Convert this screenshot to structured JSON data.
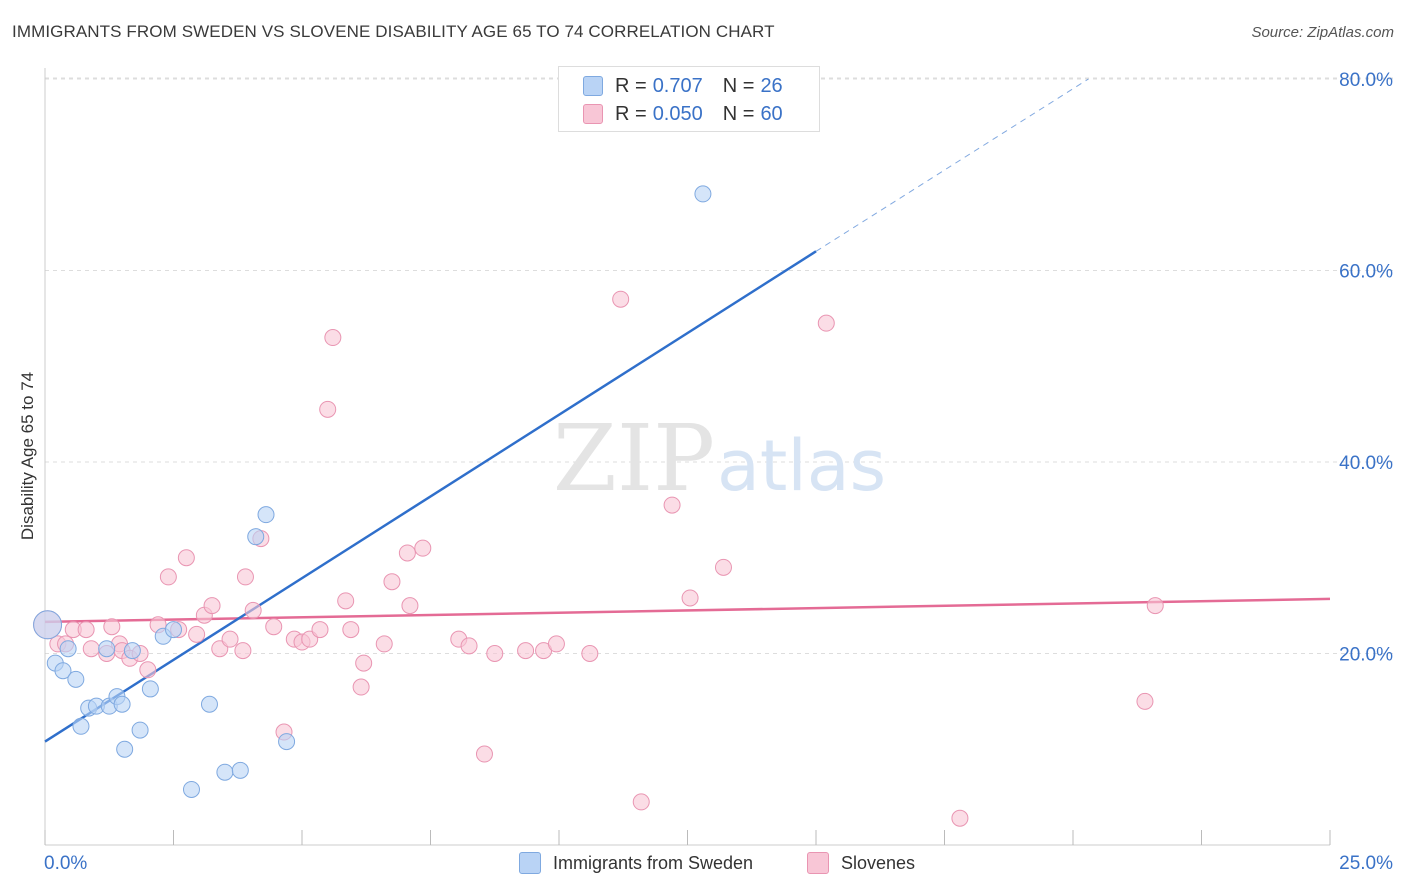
{
  "title": "IMMIGRANTS FROM SWEDEN VS SLOVENE DISABILITY AGE 65 TO 74 CORRELATION CHART",
  "source": "Source: ZipAtlas.com",
  "watermark": {
    "zip": "ZIP",
    "atlas": "atlas"
  },
  "legend": {
    "r_label": "R =",
    "n_label": "N =",
    "items": [
      {
        "r": "0.707",
        "n": "26"
      },
      {
        "r": "0.050",
        "n": "60"
      }
    ]
  },
  "colors": {
    "sweden_fill": "#b9d3f5",
    "sweden_stroke": "#7fa9e0",
    "sweden_line": "#2f6fcb",
    "slovene_fill": "#f8c6d6",
    "slovene_stroke": "#e995b2",
    "slovene_line": "#e46b95",
    "tick_label": "#3a72c7",
    "grid": "#dddddd"
  },
  "chart_data": {
    "type": "scatter",
    "xlabel": "",
    "ylabel": "Disability Age 65 to 74",
    "xlim": [
      0,
      25
    ],
    "ylim": [
      0,
      80
    ],
    "x_tick_labels": [
      "0.0%",
      "25.0%"
    ],
    "y_ticks": [
      20,
      40,
      60,
      80
    ],
    "y_tick_labels": [
      "20.0%",
      "40.0%",
      "60.0%",
      "80.0%"
    ],
    "grid": true,
    "legend_position": "top-center",
    "series": [
      {
        "name": "Immigrants from Sweden",
        "points": [
          [
            0.05,
            23.0
          ],
          [
            0.2,
            19.0
          ],
          [
            0.35,
            18.2
          ],
          [
            0.45,
            20.5
          ],
          [
            0.6,
            17.3
          ],
          [
            0.7,
            12.4
          ],
          [
            0.85,
            14.3
          ],
          [
            1.0,
            14.5
          ],
          [
            1.2,
            20.5
          ],
          [
            1.25,
            14.5
          ],
          [
            1.4,
            15.5
          ],
          [
            1.5,
            14.7
          ],
          [
            1.55,
            10.0
          ],
          [
            1.7,
            20.3
          ],
          [
            1.85,
            12.0
          ],
          [
            2.05,
            16.3
          ],
          [
            2.3,
            21.8
          ],
          [
            2.5,
            22.5
          ],
          [
            2.85,
            5.8
          ],
          [
            3.2,
            14.7
          ],
          [
            3.5,
            7.6
          ],
          [
            3.8,
            7.8
          ],
          [
            4.1,
            32.2
          ],
          [
            4.3,
            34.5
          ],
          [
            4.7,
            10.8
          ],
          [
            12.8,
            68.0
          ]
        ]
      },
      {
        "name": "Slovenes",
        "points": [
          [
            0.05,
            23.0
          ],
          [
            0.25,
            21.0
          ],
          [
            0.4,
            21.0
          ],
          [
            0.55,
            22.5
          ],
          [
            0.8,
            22.5
          ],
          [
            0.9,
            20.5
          ],
          [
            1.2,
            20.0
          ],
          [
            1.3,
            22.8
          ],
          [
            1.45,
            21.0
          ],
          [
            1.5,
            20.3
          ],
          [
            1.65,
            19.5
          ],
          [
            1.85,
            20.0
          ],
          [
            2.0,
            18.3
          ],
          [
            2.2,
            23.0
          ],
          [
            2.4,
            28.0
          ],
          [
            2.6,
            22.5
          ],
          [
            2.75,
            30.0
          ],
          [
            2.95,
            22.0
          ],
          [
            3.1,
            24.0
          ],
          [
            3.25,
            25.0
          ],
          [
            3.4,
            20.5
          ],
          [
            3.6,
            21.5
          ],
          [
            3.85,
            20.3
          ],
          [
            3.9,
            28.0
          ],
          [
            4.05,
            24.5
          ],
          [
            4.2,
            32.0
          ],
          [
            4.45,
            22.8
          ],
          [
            4.65,
            11.8
          ],
          [
            4.85,
            21.5
          ],
          [
            5.0,
            21.2
          ],
          [
            5.15,
            21.5
          ],
          [
            5.35,
            22.5
          ],
          [
            5.5,
            45.5
          ],
          [
            5.6,
            53.0
          ],
          [
            5.85,
            25.5
          ],
          [
            5.95,
            22.5
          ],
          [
            6.2,
            19.0
          ],
          [
            6.15,
            16.5
          ],
          [
            6.6,
            21.0
          ],
          [
            6.75,
            27.5
          ],
          [
            7.1,
            25.0
          ],
          [
            7.05,
            30.5
          ],
          [
            7.35,
            31.0
          ],
          [
            8.05,
            21.5
          ],
          [
            8.25,
            20.8
          ],
          [
            8.55,
            9.5
          ],
          [
            8.75,
            20.0
          ],
          [
            9.35,
            20.3
          ],
          [
            9.7,
            20.3
          ],
          [
            9.95,
            21.0
          ],
          [
            10.6,
            20.0
          ],
          [
            11.2,
            57.0
          ],
          [
            11.6,
            4.5
          ],
          [
            12.2,
            35.5
          ],
          [
            12.55,
            25.8
          ],
          [
            13.2,
            29.0
          ],
          [
            15.2,
            54.5
          ],
          [
            17.8,
            2.8
          ],
          [
            21.4,
            15.0
          ],
          [
            21.6,
            25.0
          ]
        ]
      }
    ],
    "trend_lines": [
      {
        "series": "Immigrants from Sweden",
        "solid": [
          [
            0,
            10.8
          ],
          [
            15.0,
            62.0
          ]
        ],
        "dashed": [
          [
            15.0,
            62.0
          ],
          [
            20.3,
            80.0
          ]
        ]
      },
      {
        "series": "Slovenes",
        "solid": [
          [
            0,
            23.3
          ],
          [
            25.0,
            25.7
          ]
        ]
      }
    ]
  }
}
